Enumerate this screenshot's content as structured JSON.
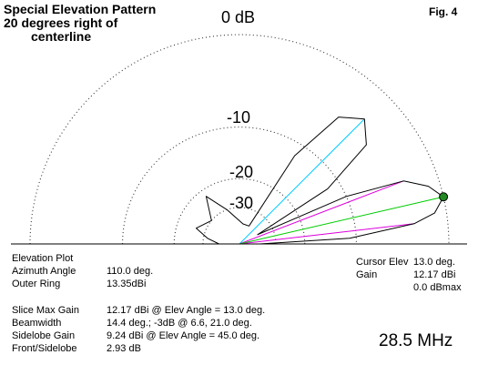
{
  "header": {
    "title_lines": [
      "Special Elevation Pattern",
      "20 degrees right of",
      "centerline"
    ],
    "fig_label": "Fig. 4"
  },
  "chart_data": {
    "type": "polar-elevation",
    "ring_labels": [
      "0 dB",
      "-10",
      "-20",
      "-30"
    ],
    "rings_db": [
      0,
      -10,
      -20,
      -30
    ],
    "grid": "dotted",
    "pattern_color": "#000000",
    "pattern": [
      {
        "angle": 0,
        "db": -40
      },
      {
        "angle": 3,
        "db": -11
      },
      {
        "angle": 6.6,
        "db": -3
      },
      {
        "angle": 9,
        "db": -1
      },
      {
        "angle": 13,
        "db": 0
      },
      {
        "angle": 17,
        "db": -1
      },
      {
        "angle": 21,
        "db": -3
      },
      {
        "angle": 24,
        "db": -10
      },
      {
        "angle": 27,
        "db": -40
      },
      {
        "angle": 32,
        "db": -12
      },
      {
        "angle": 38,
        "db": -4.5
      },
      {
        "angle": 45,
        "db": -2.9
      },
      {
        "angle": 52,
        "db": -4.5
      },
      {
        "angle": 58,
        "db": -12
      },
      {
        "angle": 62,
        "db": -40
      },
      {
        "angle": 80,
        "db": -40
      },
      {
        "angle": 110,
        "db": -30
      },
      {
        "angle": 125,
        "db": -22
      },
      {
        "angle": 140,
        "db": -30
      },
      {
        "angle": 160,
        "db": -26
      },
      {
        "angle": 170,
        "db": -32
      },
      {
        "angle": 180,
        "db": -40
      }
    ],
    "lines": [
      {
        "name": "sidelobe-line",
        "angle": 45.0,
        "db": -2.93,
        "color": "#00ccff"
      },
      {
        "name": "beamwidth-line-upper",
        "angle": 21.0,
        "db": -3.0,
        "color": "#dd00dd"
      },
      {
        "name": "beamwidth-line-lower",
        "angle": 6.6,
        "db": -3.0,
        "color": "#dd00dd"
      },
      {
        "name": "cursor-line",
        "angle": 13.0,
        "db": 0.0,
        "color": "#00cc00"
      }
    ],
    "cursor_marker": {
      "angle": 13.0,
      "db": 0.0,
      "color": "#228822"
    }
  },
  "info": {
    "plot_type": "Elevation Plot",
    "azimuth_label": "Azimuth Angle",
    "azimuth_value": "110.0 deg.",
    "outer_ring_label": "Outer Ring",
    "outer_ring_value": "13.35dBi",
    "slice_max_label": "Slice Max Gain",
    "slice_max_value": "12.17 dBi @ Elev Angle = 13.0 deg.",
    "beamwidth_label": "Beamwidth",
    "beamwidth_value": "14.4 deg.; -3dB @ 6.6, 21.0 deg.",
    "sidelobe_label": "Sidelobe Gain",
    "sidelobe_value": "9.24 dBi @ Elev Angle = 45.0 deg.",
    "front_side_label": "Front/Sidelobe",
    "front_side_value": "2.93 dB"
  },
  "cursor": {
    "elev_label": "Cursor Elev",
    "elev_value": "13.0 deg.",
    "gain_label": "Gain",
    "gain_value": "12.17 dBi",
    "dbmax_value": "0.0 dBmax"
  },
  "frequency": "28.5 MHz"
}
